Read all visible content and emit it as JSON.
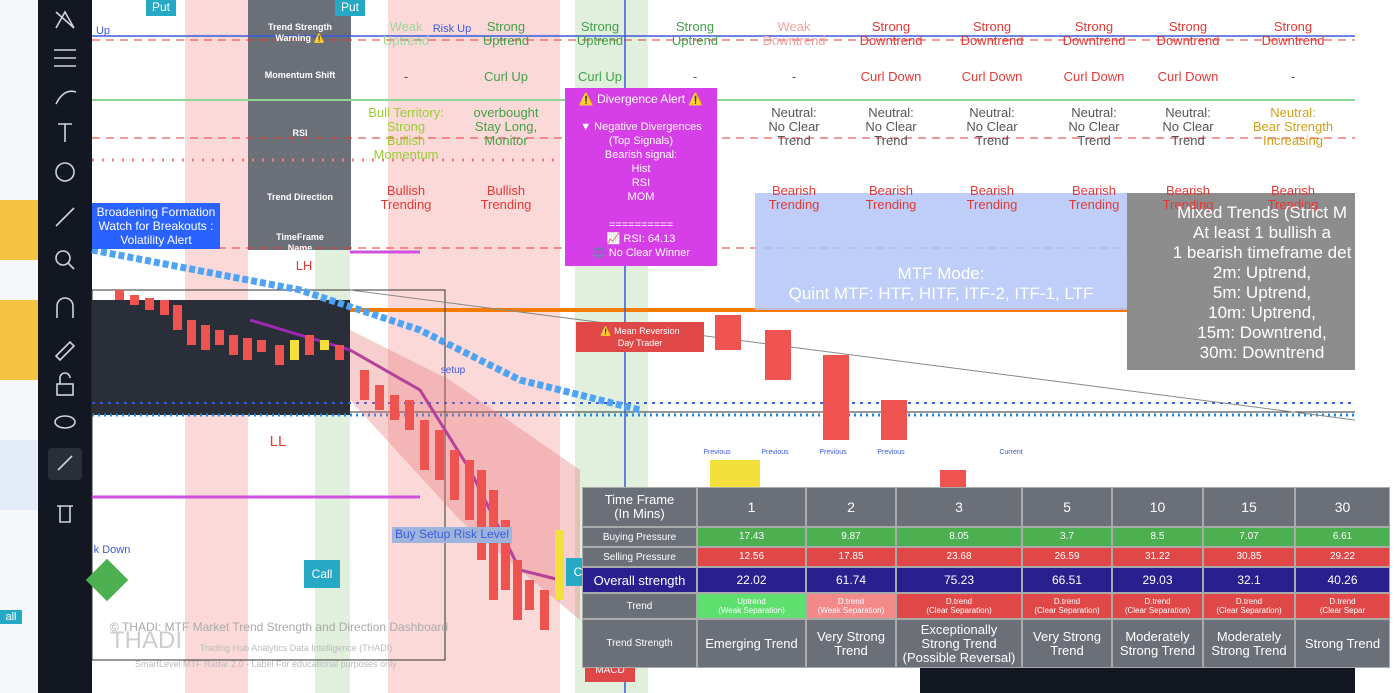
{
  "row_labels": [
    "Trend Strength\nWarning ⚠️",
    "Momentum Shift",
    "RSI",
    "Trend Direction",
    "TimeFrame\nName"
  ],
  "top_rows": {
    "strength": [
      "Weak\nUptrend",
      "Strong\nUptrend",
      "Strong\nUptrend",
      "Strong\nUptrend",
      "Weak\nDowntrend",
      "Strong\nDowntrend",
      "Strong\nDowntrend",
      "Strong\nDowntrend",
      "Strong\nDowntrend",
      "Strong\nDowntrend"
    ],
    "momentum": [
      "-",
      "Curl Up",
      "Curl Up",
      "-",
      "-",
      "Curl Down",
      "Curl Down",
      "Curl Down",
      "Curl Down",
      "-"
    ],
    "rsi": [
      "Bull Territory:\nStrong\nBullish\nMomentum",
      "overbought\nStay Long,\nMonitor",
      null,
      null,
      "Neutral:\nNo Clear\nTrend",
      "Neutral:\nNo Clear\nTrend",
      "Neutral:\nNo Clear\nTrend",
      "Neutral:\nNo Clear\nTrend",
      "Neutral:\nNo Clear\nTrend",
      "Neutral:\nBear Strength\nIncreasing"
    ],
    "direction": [
      "Bullish\nTrending",
      "Bullish\nTrending",
      null,
      null,
      "Bearish\nTrending",
      "Bearish\nTrending",
      "Bearish\nTrending",
      "Bearish\nTrending",
      "Bearish\nTrending",
      "Bearish\nTrending"
    ]
  },
  "divergence": {
    "title": "⚠️ Divergence Alert ⚠️",
    "body": "▼ Negative Divergences\n(Top Signals)\nBearish signal:\nHist\nRSI\nMOM\n\n==========\n📈 RSI: 64.13\n⚖️ No Clear Winner"
  },
  "mtf": {
    "title": "MTF Mode:",
    "text": "Quint MTF: HTF, HITF, ITF-2, ITF-1, LTF"
  },
  "mixed": "Mixed Trends (Strict M\nAt least 1 bullish a\n1 bearish timeframe det\n2m: Uptrend,\n5m: Uptrend,\n10m: Uptrend,\n15m: Downtrend,\n30m: Downtrend",
  "broadening": "Broadening Formation\nWatch for Breakouts :\nVolatility Alert",
  "labels": {
    "put1": "Put",
    "put2": "Put",
    "call1": "Call",
    "call2": "Call",
    "risk_up": "Risk Up",
    "buy_setup": "Buy Setup Risk Level",
    "ll": "LL",
    "lh": "LH",
    "setup": "setup",
    "mean_rev": "⚠️ Mean Reversion\nDay Trader",
    "macd": "MACD",
    "k_down": "k Down",
    "all": "all",
    "up": "Up"
  },
  "previous": [
    "Previous",
    "Previous",
    "Previous",
    "Previous",
    "Current"
  ],
  "table": {
    "header": "Time Frame\n(In Mins)",
    "timeframes": [
      1,
      2,
      3,
      5,
      10,
      15,
      30
    ],
    "rows": [
      {
        "label": "Buying Pressure",
        "values": [
          17.43,
          9.87,
          8.05,
          3.7,
          8.5,
          7.07,
          6.61
        ]
      },
      {
        "label": "Selling Pressure",
        "values": [
          12.56,
          17.85,
          23.68,
          26.59,
          31.22,
          30.85,
          29.22
        ]
      },
      {
        "label": "Overall strength",
        "values": [
          22.02,
          61.74,
          75.23,
          66.51,
          29.03,
          32.1,
          40.26
        ]
      },
      {
        "label": "Trend",
        "values": [
          "Uptrend\n(Weak Separation)",
          "D.trend\n(Weak Separation)",
          "D.trend\n(Clear Separation)",
          "D.trend\n(Clear Separation)",
          "D.trend\n(Clear Separation)",
          "D.trend\n(Clear Separation)",
          "D.trend\n(Clear Separ"
        ]
      },
      {
        "label": "Trend Strength",
        "values": [
          "Emerging Trend",
          "Very Strong\nTrend",
          "Exceptionally\nStrong Trend\n(Possible Reversal)",
          "Very Strong\nTrend",
          "Moderately\nStrong Trend",
          "Moderately\nStrong Trend",
          "Strong Trend"
        ]
      }
    ]
  },
  "watermark": {
    "line1": "© THADI: MTF Market Trend Strength and Direction Dashboard",
    "logo": "THADI",
    "line2": "Trading Hub Analytics Data Intelligence (THADI)",
    "line3": "SmartLevel MTF Radar 2.0 - Label For educational purposes only"
  }
}
